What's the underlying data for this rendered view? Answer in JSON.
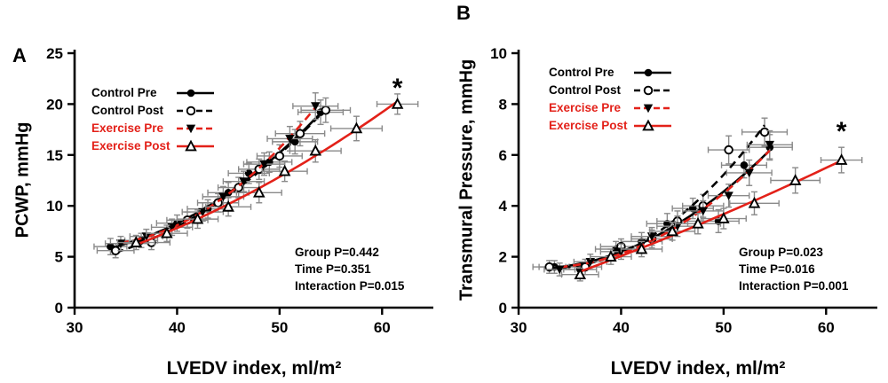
{
  "colors": {
    "black": "#000000",
    "red": "#e32119",
    "error_bar": "#8a8a8a",
    "background": "#ffffff"
  },
  "chart_data": [
    {
      "type": "scatter",
      "panel_label": "A",
      "xlabel": "LVEDV index, ml/m²",
      "ylabel": "PCWP, mmHg",
      "xlim": [
        30,
        65
      ],
      "ylim": [
        0,
        25
      ],
      "xticks": [
        30,
        40,
        50,
        60
      ],
      "yticks": [
        0,
        5,
        10,
        15,
        20,
        25
      ],
      "grid": false,
      "legend_position": "top-left",
      "stats": [
        "Group P=0.442",
        "Time P=0.351",
        "Interaction P=0.015"
      ],
      "annotation": {
        "text": "*",
        "x": 61.5,
        "y": 21.5
      },
      "series": [
        {
          "name": "Control Pre",
          "marker": "circle-filled",
          "line": "solid",
          "color": "#000000",
          "points": [
            [
              33.5,
              6.0,
              1.6,
              0.8
            ],
            [
              36.5,
              6.6,
              1.6,
              0.7
            ],
            [
              40,
              8.3,
              2,
              0.8
            ],
            [
              43,
              9.7,
              2,
              0.9
            ],
            [
              45,
              11.3,
              2,
              1.0
            ],
            [
              47,
              13.2,
              2,
              1.0
            ],
            [
              49,
              14.3,
              2.2,
              1.0
            ],
            [
              51.5,
              16.3,
              2.2,
              1.2
            ],
            [
              54,
              19.2,
              2.2,
              1.2
            ]
          ]
        },
        {
          "name": "Control Post",
          "marker": "circle-open",
          "line": "dashed",
          "color": "#000000",
          "points": [
            [
              34,
              5.6,
              1.8,
              0.7
            ],
            [
              37.5,
              6.4,
              1.8,
              0.7
            ],
            [
              41,
              8.6,
              2,
              0.8
            ],
            [
              44,
              10.3,
              2,
              0.9
            ],
            [
              46,
              11.8,
              2,
              1.0
            ],
            [
              48,
              13.6,
              2,
              1.0
            ],
            [
              50,
              14.9,
              2.2,
              1.1
            ],
            [
              52,
              17.1,
              2.4,
              1.2
            ],
            [
              54.5,
              19.4,
              2.4,
              1.2
            ]
          ]
        },
        {
          "name": "Exercise Pre",
          "marker": "triangle-filled",
          "line": "dashed",
          "color": "#e32119",
          "points": [
            [
              34.5,
              6.3,
              1.5,
              0.7
            ],
            [
              37,
              7.0,
              1.6,
              0.7
            ],
            [
              39.5,
              7.9,
              2,
              0.8
            ],
            [
              42.5,
              9.4,
              2,
              0.9
            ],
            [
              44.5,
              10.9,
              2,
              1.0
            ],
            [
              46.5,
              12.4,
              2,
              1.0
            ],
            [
              48.5,
              14.1,
              2,
              1.1
            ],
            [
              51,
              16.6,
              2.2,
              1.2
            ],
            [
              53.5,
              19.8,
              2.2,
              1.3
            ]
          ]
        },
        {
          "name": "Exercise Post",
          "marker": "triangle-open",
          "line": "solid",
          "color": "#e32119",
          "points": [
            [
              36,
              6.4,
              1.8,
              0.7
            ],
            [
              39,
              7.3,
              2,
              0.8
            ],
            [
              42,
              8.7,
              2,
              0.9
            ],
            [
              45,
              9.9,
              2.2,
              0.9
            ],
            [
              48,
              11.3,
              2.2,
              1.0
            ],
            [
              50.5,
              13.4,
              2.2,
              1.0
            ],
            [
              53.5,
              15.4,
              2.5,
              1.1
            ],
            [
              57.5,
              17.6,
              2.5,
              1.2
            ],
            [
              61.5,
              20.0,
              2.0,
              1.0
            ]
          ]
        }
      ]
    },
    {
      "type": "scatter",
      "panel_label": "B",
      "xlabel": "LVEDV index, ml/m²",
      "ylabel": "Transmural Pressure, mmHg",
      "xlim": [
        30,
        65
      ],
      "ylim": [
        0,
        10
      ],
      "xticks": [
        30,
        40,
        50,
        60
      ],
      "yticks": [
        0,
        2,
        4,
        6,
        8,
        10
      ],
      "grid": false,
      "legend_position": "top-left",
      "stats": [
        "Group P=0.023",
        "Time P=0.016",
        "Interaction P=0.001"
      ],
      "annotation": {
        "text": "*",
        "x": 61.5,
        "y": 6.9
      },
      "series": [
        {
          "name": "Control Pre",
          "marker": "circle-filled",
          "line": "solid",
          "color": "#000000",
          "points": [
            [
              33.5,
              1.6,
              1.5,
              0.25
            ],
            [
              36,
              1.5,
              1.6,
              0.3
            ],
            [
              39.5,
              2.3,
              2,
              0.3
            ],
            [
              42,
              2.6,
              2,
              0.35
            ],
            [
              44.5,
              3.3,
              2,
              0.4
            ],
            [
              47,
              3.9,
              2,
              0.4
            ],
            [
              49.5,
              3.4,
              2,
              0.45
            ],
            [
              52,
              5.6,
              2.2,
              0.5
            ],
            [
              54.5,
              6.3,
              2.2,
              0.5
            ]
          ]
        },
        {
          "name": "Control Post",
          "marker": "circle-open",
          "line": "dashed",
          "color": "#000000",
          "points": [
            [
              33,
              1.6,
              1.6,
              0.25
            ],
            [
              36.5,
              1.6,
              1.6,
              0.3
            ],
            [
              40,
              2.4,
              2,
              0.3
            ],
            [
              43,
              2.7,
              2,
              0.35
            ],
            [
              45.5,
              3.4,
              2,
              0.4
            ],
            [
              48,
              4.0,
              2,
              0.45
            ],
            [
              50.5,
              6.2,
              2,
              0.55
            ],
            [
              54,
              6.9,
              2.2,
              0.55
            ]
          ]
        },
        {
          "name": "Exercise Pre",
          "marker": "triangle-filled",
          "line": "dashed",
          "color": "#e32119",
          "points": [
            [
              34,
              1.5,
              1.5,
              0.25
            ],
            [
              37,
              1.8,
              1.6,
              0.3
            ],
            [
              40,
              2.2,
              2,
              0.3
            ],
            [
              43,
              2.8,
              2,
              0.35
            ],
            [
              45.5,
              3.2,
              2,
              0.4
            ],
            [
              48,
              3.8,
              2,
              0.4
            ],
            [
              50.5,
              4.4,
              2,
              0.45
            ],
            [
              52.5,
              5.3,
              2.2,
              0.5
            ],
            [
              54.5,
              6.4,
              2.2,
              0.55
            ]
          ]
        },
        {
          "name": "Exercise Post",
          "marker": "triangle-open",
          "line": "solid",
          "color": "#e32119",
          "points": [
            [
              36,
              1.3,
              1.8,
              0.25
            ],
            [
              39,
              2.0,
              2,
              0.3
            ],
            [
              42,
              2.3,
              2,
              0.3
            ],
            [
              45,
              3.0,
              2.2,
              0.35
            ],
            [
              47.5,
              3.3,
              2.2,
              0.4
            ],
            [
              50,
              3.5,
              2.2,
              0.4
            ],
            [
              53,
              4.1,
              2.4,
              0.45
            ],
            [
              57,
              5.0,
              2.4,
              0.5
            ],
            [
              61.5,
              5.8,
              2.0,
              0.5
            ]
          ]
        }
      ]
    }
  ]
}
